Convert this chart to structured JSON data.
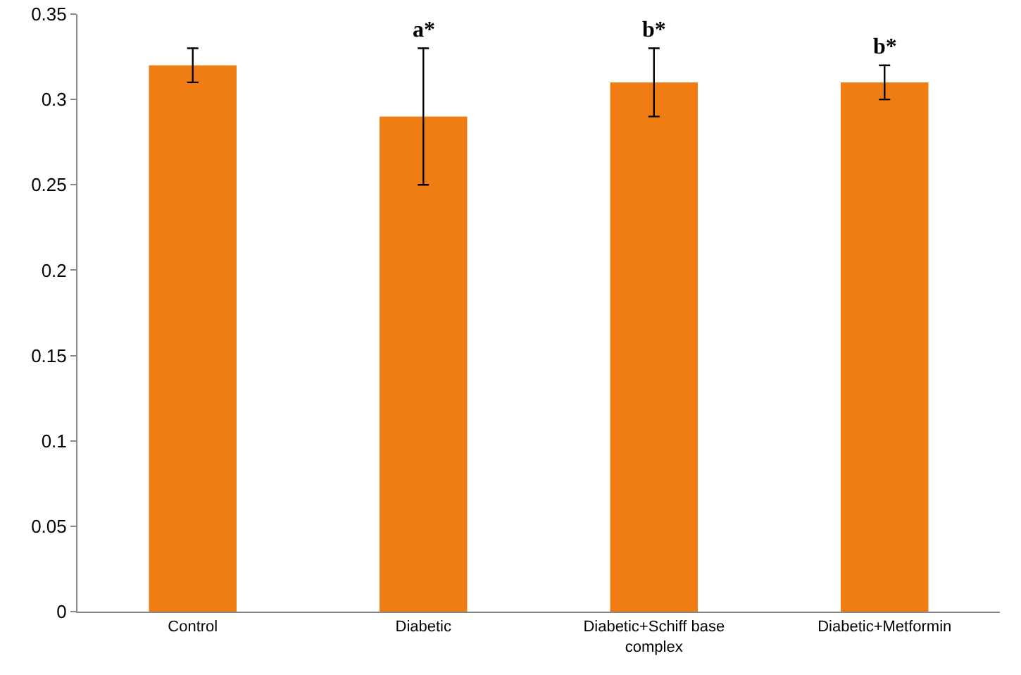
{
  "chart_data": {
    "type": "bar",
    "categories": [
      "Control",
      "Diabetic",
      "Diabetic+Schiff base complex",
      "Diabetic+Metformin"
    ],
    "values": [
      0.32,
      0.29,
      0.31,
      0.31
    ],
    "errors": [
      0.01,
      0.04,
      0.02,
      0.01
    ],
    "color": "#f07c14",
    "ylim": [
      0,
      0.35
    ],
    "yticks": [
      0,
      0.05,
      0.1,
      0.15,
      0.2,
      0.25,
      0.3,
      0.35
    ],
    "grid": false,
    "legend": false,
    "annotations": [
      {
        "text": "a*",
        "x": "Diabetic",
        "y": 0.33
      },
      {
        "text": "b*",
        "x": "Diabetic+Schiff base complex",
        "y": 0.33
      },
      {
        "text": "b*",
        "x": "Diabetic+Metformin",
        "y": 0.32
      }
    ]
  }
}
